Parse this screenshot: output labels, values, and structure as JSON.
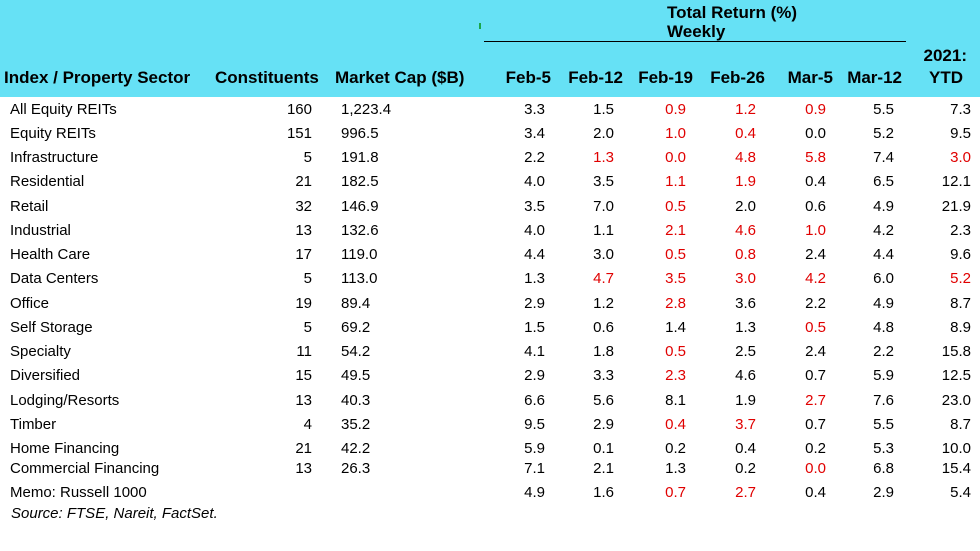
{
  "chart_data": {
    "type": "table",
    "header": {
      "group_title_line1": "Total Return (%)",
      "group_title_line2": "Weekly",
      "ytd_line1": "2021:",
      "ytd_line2": "YTD",
      "columns": [
        "Index / Property Sector",
        "Constituents",
        "Market Cap ($B)",
        "Feb-5",
        "Feb-12",
        "Feb-19",
        "Feb-26",
        "Mar-5",
        "Mar-12"
      ]
    },
    "rows": [
      {
        "name": "All Equity REITs",
        "constituents": "160",
        "market_cap": "1,223.4",
        "values": [
          "3.3",
          "1.5",
          "0.9",
          "1.2",
          "0.9",
          "5.5",
          "7.3"
        ],
        "red": [
          false,
          false,
          true,
          true,
          true,
          false,
          false
        ]
      },
      {
        "name": "Equity REITs",
        "constituents": "151",
        "market_cap": "996.5",
        "values": [
          "3.4",
          "2.0",
          "1.0",
          "0.4",
          "0.0",
          "5.2",
          "9.5"
        ],
        "red": [
          false,
          false,
          true,
          true,
          false,
          false,
          false
        ]
      },
      {
        "name": "Infrastructure",
        "constituents": "5",
        "market_cap": "191.8",
        "values": [
          "2.2",
          "1.3",
          "0.0",
          "4.8",
          "5.8",
          "7.4",
          "3.0"
        ],
        "red": [
          false,
          true,
          true,
          true,
          true,
          false,
          true
        ]
      },
      {
        "name": "Residential",
        "constituents": "21",
        "market_cap": "182.5",
        "values": [
          "4.0",
          "3.5",
          "1.1",
          "1.9",
          "0.4",
          "6.5",
          "12.1"
        ],
        "red": [
          false,
          false,
          true,
          true,
          false,
          false,
          false
        ]
      },
      {
        "name": "Retail",
        "constituents": "32",
        "market_cap": "146.9",
        "values": [
          "3.5",
          "7.0",
          "0.5",
          "2.0",
          "0.6",
          "4.9",
          "21.9"
        ],
        "red": [
          false,
          false,
          true,
          false,
          false,
          false,
          false
        ]
      },
      {
        "name": "Industrial",
        "constituents": "13",
        "market_cap": "132.6",
        "values": [
          "4.0",
          "1.1",
          "2.1",
          "4.6",
          "1.0",
          "4.2",
          "2.3"
        ],
        "red": [
          false,
          false,
          true,
          true,
          true,
          false,
          false
        ]
      },
      {
        "name": "Health Care",
        "constituents": "17",
        "market_cap": "119.0",
        "values": [
          "4.4",
          "3.0",
          "0.5",
          "0.8",
          "2.4",
          "4.4",
          "9.6"
        ],
        "red": [
          false,
          false,
          true,
          true,
          false,
          false,
          false
        ]
      },
      {
        "name": "Data Centers",
        "constituents": "5",
        "market_cap": "113.0",
        "values": [
          "1.3",
          "4.7",
          "3.5",
          "3.0",
          "4.2",
          "6.0",
          "5.2"
        ],
        "red": [
          false,
          true,
          true,
          true,
          true,
          false,
          true
        ]
      },
      {
        "name": "Office",
        "constituents": "19",
        "market_cap": "89.4",
        "values": [
          "2.9",
          "1.2",
          "2.8",
          "3.6",
          "2.2",
          "4.9",
          "8.7"
        ],
        "red": [
          false,
          false,
          true,
          false,
          false,
          false,
          false
        ]
      },
      {
        "name": "Self Storage",
        "constituents": "5",
        "market_cap": "69.2",
        "values": [
          "1.5",
          "0.6",
          "1.4",
          "1.3",
          "0.5",
          "4.8",
          "8.9"
        ],
        "red": [
          false,
          false,
          false,
          false,
          true,
          false,
          false
        ]
      },
      {
        "name": "Specialty",
        "constituents": "11",
        "market_cap": "54.2",
        "values": [
          "4.1",
          "1.8",
          "0.5",
          "2.5",
          "2.4",
          "2.2",
          "15.8"
        ],
        "red": [
          false,
          false,
          true,
          false,
          false,
          false,
          false
        ]
      },
      {
        "name": "Diversified",
        "constituents": "15",
        "market_cap": "49.5",
        "values": [
          "2.9",
          "3.3",
          "2.3",
          "4.6",
          "0.7",
          "5.9",
          "12.5"
        ],
        "red": [
          false,
          false,
          true,
          false,
          false,
          false,
          false
        ]
      },
      {
        "name": "Lodging/Resorts",
        "constituents": "13",
        "market_cap": "40.3",
        "values": [
          "6.6",
          "5.6",
          "8.1",
          "1.9",
          "2.7",
          "7.6",
          "23.0"
        ],
        "red": [
          false,
          false,
          false,
          false,
          true,
          false,
          false
        ]
      },
      {
        "name": "Timber",
        "constituents": "4",
        "market_cap": "35.2",
        "values": [
          "9.5",
          "2.9",
          "0.4",
          "3.7",
          "0.7",
          "5.5",
          "8.7"
        ],
        "red": [
          false,
          false,
          true,
          true,
          false,
          false,
          false
        ]
      },
      {
        "name": "Home Financing",
        "constituents": "21",
        "market_cap": "42.2",
        "values": [
          "5.9",
          "0.1",
          "0.2",
          "0.4",
          "0.2",
          "5.3",
          "10.0"
        ],
        "red": [
          false,
          false,
          false,
          false,
          false,
          false,
          false
        ]
      },
      {
        "name": "Commercial Financing",
        "constituents": "13",
        "market_cap": "26.3",
        "values": [
          "7.1",
          "2.1",
          "1.3",
          "0.2",
          "0.0",
          "6.8",
          "15.4"
        ],
        "red": [
          false,
          false,
          false,
          false,
          true,
          false,
          false
        ]
      },
      {
        "name": "Memo: Russell 1000",
        "constituents": "",
        "market_cap": "",
        "values": [
          "4.9",
          "1.6",
          "0.7",
          "2.7",
          "0.4",
          "2.9",
          "5.4"
        ],
        "red": [
          false,
          false,
          true,
          true,
          false,
          false,
          false
        ]
      }
    ],
    "source": "Source: FTSE, Nareit, FactSet.",
    "colors": {
      "header_bg": "#66e1f5",
      "negative": "#e00000",
      "text": "#000000"
    }
  }
}
